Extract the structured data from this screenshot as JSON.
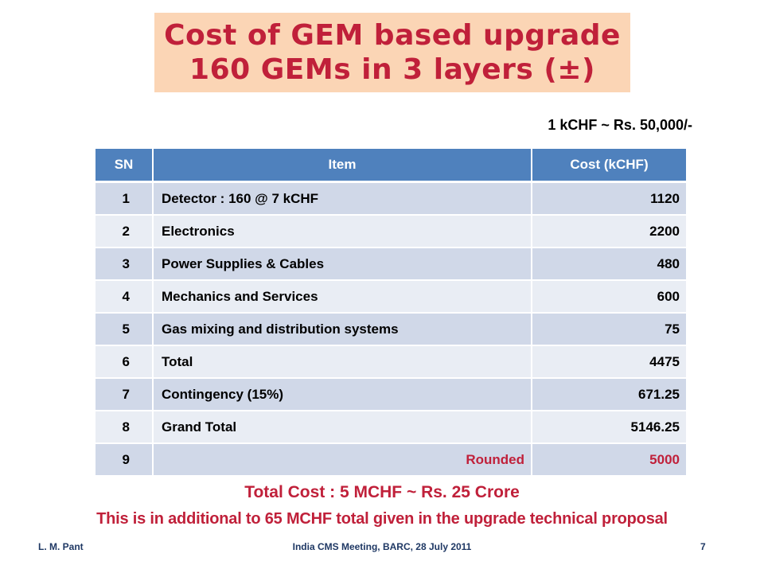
{
  "title": {
    "line1": "Cost of GEM based upgrade",
    "line2": "160 GEMs in 3 layers (±)"
  },
  "exchange_rate": "1 kCHF ~ Rs. 50,000/-",
  "table": {
    "headers": [
      "SN",
      "Item",
      "Cost (kCHF)"
    ],
    "rows": [
      {
        "sn": "1",
        "item": "Detector : 160 @ 7 kCHF",
        "cost": "1120"
      },
      {
        "sn": "2",
        "item": "Electronics",
        "cost": "2200"
      },
      {
        "sn": "3",
        "item": "Power Supplies & Cables",
        "cost": "480"
      },
      {
        "sn": "4",
        "item": "Mechanics and Services",
        "cost": "600"
      },
      {
        "sn": "5",
        "item": "Gas mixing and distribution systems",
        "cost": "75"
      },
      {
        "sn": "6",
        "item": "Total",
        "cost": "4475"
      },
      {
        "sn": "7",
        "item": "Contingency (15%)",
        "cost": "671.25"
      },
      {
        "sn": "8",
        "item": "Grand Total",
        "cost": "5146.25"
      },
      {
        "sn": "9",
        "item": "Rounded",
        "cost": "5000"
      }
    ]
  },
  "summary": {
    "total_cost": "Total Cost : 5 MCHF ~ Rs. 25 Crore",
    "additional_note": "This is in additional to 65 MCHF total given in the upgrade technical proposal"
  },
  "footer": {
    "author": "L. M. Pant",
    "event": "India CMS Meeting, BARC, 28 July 2011",
    "page": "7"
  },
  "colors": {
    "title_bg": "#fbd5b5",
    "title_text": "#c0203a",
    "header_bg": "#4f81bd",
    "row_odd": "#d0d8e8",
    "row_even": "#e9edf4"
  }
}
